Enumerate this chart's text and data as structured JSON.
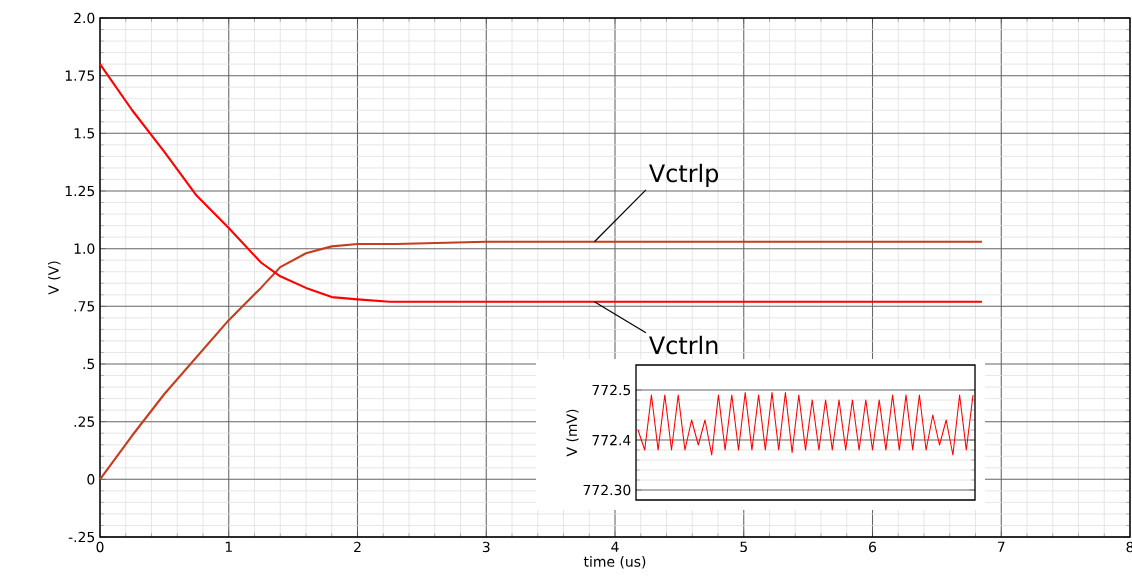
{
  "chart_data": [
    {
      "type": "line",
      "xlabel": "time (us)",
      "ylabel": "V (V)",
      "xlim": [
        0,
        8
      ],
      "ylim": [
        -0.25,
        2.0
      ],
      "xticks": [
        0,
        1,
        2,
        3,
        4,
        5,
        6,
        7,
        8
      ],
      "yticks": [
        {
          "value": -0.25,
          "label": "-.25"
        },
        0,
        {
          "value": 0.25,
          "label": ".25"
        },
        {
          "value": 0.5,
          "label": ".5"
        },
        {
          "value": 0.75,
          "label": ".75"
        },
        {
          "value": 1.0,
          "label": "1.0"
        },
        1.25,
        1.5,
        1.75,
        {
          "value": 2.0,
          "label": "2.0"
        }
      ],
      "grid": true,
      "series": [
        {
          "name": "Vctrlp",
          "color": "#c63d1e",
          "x": [
            0,
            0.25,
            0.5,
            0.75,
            1.0,
            1.25,
            1.4,
            1.6,
            1.8,
            2.0,
            2.3,
            3,
            4,
            5,
            6,
            6.85
          ],
          "values": [
            0,
            0.19,
            0.37,
            0.53,
            0.69,
            0.83,
            0.92,
            0.98,
            1.01,
            1.02,
            1.02,
            1.03,
            1.03,
            1.03,
            1.03,
            1.03
          ]
        },
        {
          "name": "Vctrln",
          "color": "#ff0000",
          "x": [
            0,
            0.25,
            0.5,
            0.75,
            1.0,
            1.25,
            1.4,
            1.6,
            1.8,
            2.0,
            2.25,
            3,
            4,
            5,
            6,
            6.85
          ],
          "values": [
            1.8,
            1.6,
            1.42,
            1.23,
            1.09,
            0.94,
            0.88,
            0.83,
            0.79,
            0.78,
            0.77,
            0.77,
            0.77,
            0.77,
            0.77,
            0.77
          ]
        }
      ]
    },
    {
      "type": "line",
      "ylabel": "V (mV)",
      "ylim": [
        772.28,
        772.55
      ],
      "yticks": [
        {
          "value": 772.3,
          "label": "772.30"
        },
        772.4,
        772.5
      ],
      "grid": "y",
      "tick_labels": "y",
      "color": "#ff0000",
      "categories": [
        null,
        null,
        null,
        null,
        null,
        null,
        null,
        null,
        null,
        null,
        null,
        null,
        null,
        null,
        null,
        null,
        null,
        null,
        null,
        null,
        null,
        null,
        null,
        null,
        null,
        null,
        null,
        null,
        null,
        null,
        null,
        null,
        null,
        null,
        null,
        null,
        null,
        null,
        null,
        null,
        null,
        null,
        null,
        null,
        null,
        null,
        null,
        null,
        null,
        null,
        null
      ],
      "values": [
        772.42,
        772.38,
        772.49,
        772.38,
        772.49,
        772.38,
        772.49,
        772.38,
        772.44,
        772.39,
        772.44,
        772.37,
        772.49,
        772.38,
        772.49,
        772.38,
        772.495,
        772.38,
        772.49,
        772.38,
        772.495,
        772.38,
        772.495,
        772.375,
        772.49,
        772.38,
        772.48,
        772.38,
        772.48,
        772.38,
        772.48,
        772.38,
        772.48,
        772.38,
        772.48,
        772.38,
        772.48,
        772.38,
        772.49,
        772.38,
        772.49,
        772.38,
        772.49,
        772.38,
        772.45,
        772.39,
        772.44,
        772.37,
        772.49,
        772.38,
        772.49
      ]
    }
  ]
}
